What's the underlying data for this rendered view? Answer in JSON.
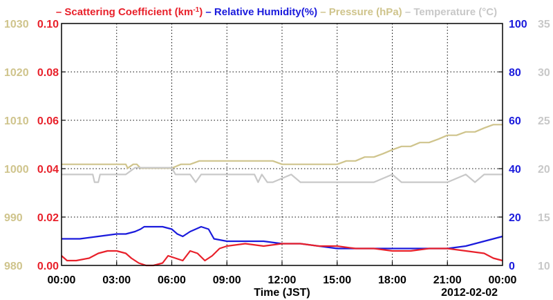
{
  "chart_data": {
    "type": "line",
    "legend": [
      {
        "dash": "–",
        "label": "Scattering Coefficient (km",
        "sup": "-1",
        "suffix": ")",
        "color": "#e8202a"
      },
      {
        "dash": "–",
        "label": "Relative Humidity(%)",
        "color": "#1a1adc"
      },
      {
        "dash": "–",
        "label": "Pressure (hPa)",
        "color": "#cfc48c"
      },
      {
        "dash": "–",
        "label": "Temperature (°C)",
        "color": "#c8c8c8"
      }
    ],
    "xlabel": "Time (JST)",
    "date_label": "2012-02-02",
    "x_ticks": [
      "00:00",
      "03:00",
      "06:00",
      "09:00",
      "12:00",
      "15:00",
      "18:00",
      "21:00",
      "00:00"
    ],
    "xlim_hours": [
      0,
      24
    ],
    "axes": {
      "scattering": {
        "ticks": [
          "0.00",
          "0.02",
          "0.04",
          "0.06",
          "0.08",
          "0.10"
        ],
        "range": [
          0,
          0.1
        ],
        "color": "#e8202a"
      },
      "pressure": {
        "ticks": [
          "980",
          "990",
          "1000",
          "1010",
          "1020",
          "1030"
        ],
        "range": [
          980,
          1030
        ],
        "color": "#cfc48c"
      },
      "humidity": {
        "ticks": [
          "0",
          "20",
          "40",
          "60",
          "80",
          "100"
        ],
        "range": [
          0,
          100
        ],
        "color": "#1a1adc"
      },
      "temperature": {
        "ticks": [
          "10",
          "15",
          "20",
          "25",
          "30",
          "35"
        ],
        "range": [
          10,
          35
        ],
        "color": "#c8c8c8"
      }
    },
    "series": [
      {
        "key": "scattering",
        "axis": "scattering",
        "color": "#e8202a",
        "x": [
          0,
          0.3,
          0.8,
          1.5,
          2,
          2.5,
          3,
          3.5,
          3.8,
          4.2,
          4.6,
          5,
          5.5,
          5.8,
          6.2,
          6.6,
          7,
          7.4,
          7.8,
          8.2,
          8.6,
          9,
          10,
          11,
          12,
          13,
          14,
          15,
          16,
          17,
          18,
          19,
          20,
          21,
          22,
          23,
          23.5,
          24
        ],
        "y": [
          0.004,
          0.002,
          0.002,
          0.003,
          0.005,
          0.006,
          0.006,
          0.005,
          0.003,
          0.001,
          0.0,
          0.0,
          0.001,
          0.004,
          0.003,
          0.002,
          0.006,
          0.005,
          0.002,
          0.004,
          0.007,
          0.008,
          0.009,
          0.008,
          0.009,
          0.009,
          0.008,
          0.008,
          0.007,
          0.007,
          0.006,
          0.006,
          0.007,
          0.007,
          0.006,
          0.005,
          0.003,
          0.002
        ]
      },
      {
        "key": "humidity",
        "axis": "humidity",
        "color": "#1a1adc",
        "x": [
          0,
          1,
          2,
          3,
          3.5,
          4,
          4.3,
          4.5,
          5,
          5.5,
          6,
          6.3,
          6.6,
          7,
          7.3,
          7.6,
          8,
          8.3,
          9,
          10,
          11,
          12,
          13,
          14,
          15,
          16,
          17,
          18,
          19,
          20,
          21,
          22,
          22.5,
          23,
          23.5,
          24
        ],
        "y": [
          11,
          11,
          12,
          13,
          13,
          14,
          15,
          16,
          16,
          16,
          15,
          13,
          12,
          14,
          15,
          16,
          15,
          11,
          10,
          10,
          10,
          9,
          9,
          8,
          7,
          7,
          7,
          7,
          7,
          7,
          7,
          8,
          9,
          10,
          11,
          12
        ]
      },
      {
        "key": "pressure",
        "axis": "pressure",
        "color": "#cfc48c",
        "x": [
          0,
          3.5,
          3.6,
          3.9,
          4.1,
          4.3,
          5,
          6,
          6.5,
          7,
          7.5,
          8,
          9,
          10,
          11,
          11.5,
          12,
          13,
          14,
          15,
          15.5,
          16,
          16.5,
          17,
          17.5,
          18,
          18.5,
          19,
          19.5,
          20,
          20.5,
          21,
          21.5,
          22,
          22.5,
          23,
          23.5,
          24
        ],
        "y": [
          1000.9,
          1000.9,
          1000.1,
          1000.9,
          1000.9,
          1000.1,
          1000.1,
          1000.1,
          1000.9,
          1000.9,
          1001.6,
          1001.6,
          1001.6,
          1001.6,
          1001.6,
          1001.6,
          1000.9,
          1000.9,
          1000.9,
          1000.9,
          1001.6,
          1001.6,
          1002.4,
          1002.4,
          1003.1,
          1003.9,
          1004.6,
          1004.6,
          1005.4,
          1005.4,
          1006.1,
          1006.9,
          1006.9,
          1007.6,
          1007.6,
          1008.4,
          1009.1,
          1009.1
        ]
      },
      {
        "key": "temperature",
        "axis": "temperature",
        "color": "#c8c8c8",
        "x": [
          0,
          1.7,
          1.8,
          2.0,
          2.1,
          3.5,
          4.0,
          5,
          6,
          6.2,
          7,
          7.3,
          7.6,
          8,
          8.5,
          9.5,
          10.5,
          10.7,
          10.9,
          11.2,
          11.5,
          12.5,
          13,
          14,
          15,
          16,
          17,
          18,
          18.5,
          19,
          20,
          21,
          22,
          22.5,
          23,
          24
        ],
        "y": [
          19.4,
          19.4,
          18.6,
          18.6,
          19.4,
          19.4,
          20.1,
          20.1,
          20.1,
          19.4,
          19.4,
          18.6,
          19.4,
          19.4,
          19.4,
          19.4,
          19.4,
          18.6,
          19.4,
          18.6,
          18.6,
          19.4,
          18.6,
          18.6,
          18.6,
          18.6,
          18.6,
          19.4,
          18.6,
          18.6,
          18.6,
          18.6,
          19.4,
          18.6,
          19.4,
          19.4
        ]
      }
    ],
    "grid": true
  }
}
